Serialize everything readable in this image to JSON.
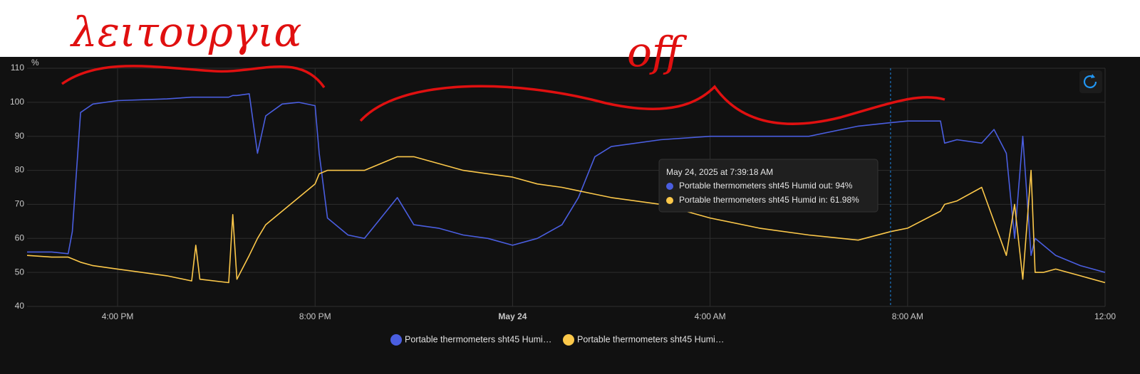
{
  "chart_data": {
    "type": "line",
    "y_label": "%",
    "annotations": [
      "λειτουργια",
      "off"
    ],
    "x": [
      "2025-05-23T14:10",
      "2025-05-23T14:40",
      "2025-05-23T15:00",
      "2025-05-23T15:05",
      "2025-05-23T15:15",
      "2025-05-23T15:30",
      "2025-05-23T16:00",
      "2025-05-23T17:00",
      "2025-05-23T17:30",
      "2025-05-23T17:35",
      "2025-05-23T17:40",
      "2025-05-23T18:15",
      "2025-05-23T18:20",
      "2025-05-23T18:25",
      "2025-05-23T18:40",
      "2025-05-23T18:50",
      "2025-05-23T19:00",
      "2025-05-23T19:20",
      "2025-05-23T19:40",
      "2025-05-23T20:00",
      "2025-05-23T20:05",
      "2025-05-23T20:15",
      "2025-05-23T20:40",
      "2025-05-23T21:00",
      "2025-05-23T21:20",
      "2025-05-23T21:40",
      "2025-05-23T22:00",
      "2025-05-23T22:30",
      "2025-05-23T23:00",
      "2025-05-23T23:30",
      "2025-05-24T00:00",
      "2025-05-24T00:30",
      "2025-05-24T01:00",
      "2025-05-24T01:20",
      "2025-05-24T01:40",
      "2025-05-24T02:00",
      "2025-05-24T03:00",
      "2025-05-24T04:00",
      "2025-05-24T05:00",
      "2025-05-24T06:00",
      "2025-05-24T07:00",
      "2025-05-24T07:39",
      "2025-05-24T08:00",
      "2025-05-24T08:40",
      "2025-05-24T08:45",
      "2025-05-24T09:00",
      "2025-05-24T09:30",
      "2025-05-24T09:45",
      "2025-05-24T10:00",
      "2025-05-24T10:10",
      "2025-05-24T10:20",
      "2025-05-24T10:30",
      "2025-05-24T10:35",
      "2025-05-24T10:45",
      "2025-05-24T11:00",
      "2025-05-24T11:30",
      "2025-05-24T12:00"
    ],
    "series": [
      {
        "name": "Portable thermometers sht45 Humid out",
        "color": "#4a5ee0",
        "values": [
          56,
          56,
          55.5,
          62,
          97,
          99.5,
          100.5,
          101,
          101.5,
          101.5,
          101.5,
          101.5,
          102,
          102,
          102.5,
          85,
          96,
          99.5,
          100,
          99,
          85,
          66,
          61,
          60,
          66,
          72,
          64,
          63,
          61,
          60,
          58,
          60,
          64,
          72,
          84,
          87,
          89,
          90,
          90,
          90,
          93,
          94,
          94.5,
          94.5,
          88,
          89,
          88,
          92,
          85,
          60,
          90,
          55,
          60,
          58,
          55,
          52,
          50
        ]
      },
      {
        "name": "Portable thermometers sht45 Humid in",
        "color": "#fcc84a",
        "values": [
          55,
          54.5,
          54.5,
          54,
          53,
          52,
          51,
          49,
          47.5,
          58,
          48,
          47,
          67,
          48,
          55,
          60,
          64,
          68,
          72,
          76,
          79,
          80,
          80,
          80,
          82,
          84,
          84,
          82,
          80,
          79,
          78,
          76,
          75,
          74,
          73,
          72,
          70,
          66,
          63,
          61,
          59.5,
          61.98,
          63,
          68,
          70,
          71,
          75,
          65,
          55,
          70,
          48,
          80,
          50,
          50,
          51,
          49,
          47
        ]
      }
    ],
    "xlim": [
      "2025-05-23T14:10",
      "2025-05-24T12:00"
    ],
    "xticks": [
      {
        "value": "2025-05-23T16:00",
        "label": "4:00 PM"
      },
      {
        "value": "2025-05-23T20:00",
        "label": "8:00 PM"
      },
      {
        "value": "2025-05-24T00:00",
        "label": "May 24"
      },
      {
        "value": "2025-05-24T04:00",
        "label": "4:00 AM"
      },
      {
        "value": "2025-05-24T08:00",
        "label": "8:00 AM"
      },
      {
        "value": "2025-05-24T12:00",
        "label": "12:00"
      }
    ],
    "ylim": [
      40,
      110
    ],
    "yticks": [
      40,
      50,
      60,
      70,
      80,
      90,
      100,
      110
    ],
    "grid": true,
    "legend": "bottom",
    "tooltip": {
      "x": "2025-05-24T07:39:18",
      "title": "May 24, 2025 at 7:39:18 AM",
      "lines": [
        "Portable thermometers sht45 Humid out: 94%",
        "Portable thermometers sht45 Humid in: 61.98%"
      ]
    }
  }
}
